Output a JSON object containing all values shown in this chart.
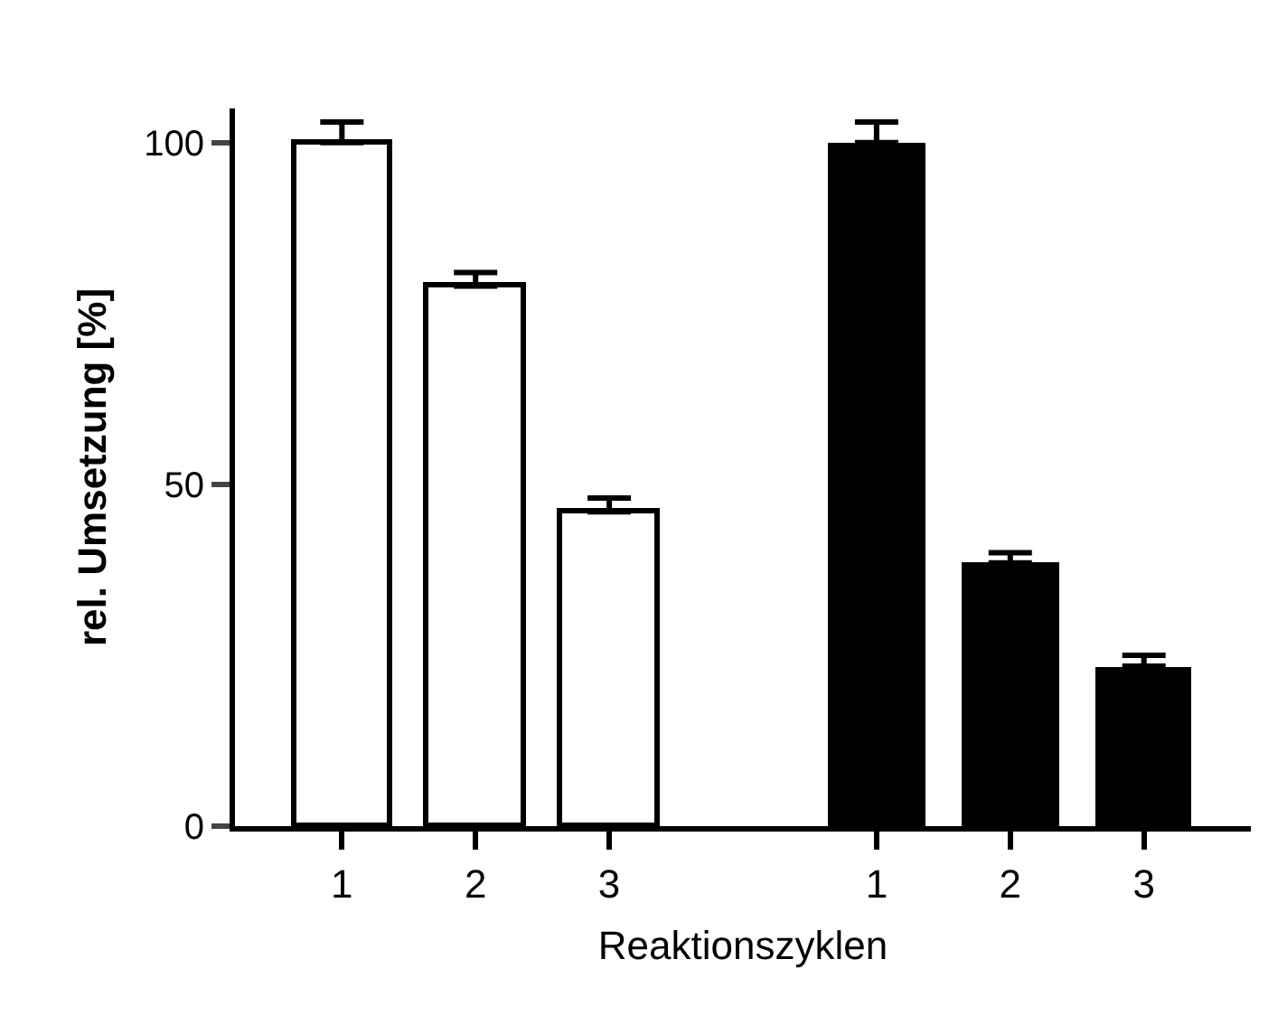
{
  "chart_data": {
    "type": "bar",
    "xlabel": "Reaktionszyklen",
    "ylabel": "rel. Umsetzung [%]",
    "categories": [
      "1",
      "2",
      "3",
      null,
      "1",
      "2",
      "3"
    ],
    "values": [
      100,
      79,
      46,
      null,
      100,
      38.5,
      23.4
    ],
    "colors": [
      "#ffffff",
      "#ffffff",
      "#ffffff",
      "#ffffff",
      "#000000",
      "#000000",
      "#000000"
    ],
    "errors": [
      [
        100,
        103
      ],
      [
        79,
        81
      ],
      [
        46,
        48
      ],
      null,
      [
        100,
        103
      ],
      [
        38.5,
        40
      ],
      [
        23.4,
        25
      ]
    ],
    "ylim": [
      0,
      105
    ],
    "yticks": [
      0,
      50,
      100
    ]
  }
}
